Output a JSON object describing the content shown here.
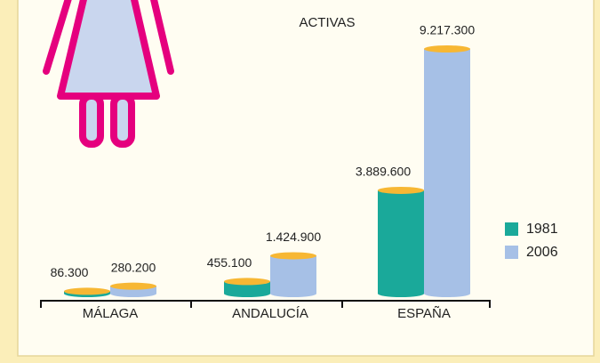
{
  "chart_data": {
    "type": "bar",
    "title": "ACTIVAS",
    "categories": [
      "MÁLAGA",
      "ANDALUCÍA",
      "ESPAÑA"
    ],
    "series": [
      {
        "name": "1981",
        "color": "#1aa99a",
        "values": [
          86300,
          455100,
          3889600
        ],
        "value_labels": [
          "86.300",
          "455.100",
          "3.889.600"
        ]
      },
      {
        "name": "2006",
        "color": "#a6c0e6",
        "values": [
          280200,
          1424900,
          9217300
        ],
        "value_labels": [
          "280.200",
          "1.424.900",
          "9.217.300"
        ]
      }
    ],
    "top_color": "#f7b733"
  }
}
